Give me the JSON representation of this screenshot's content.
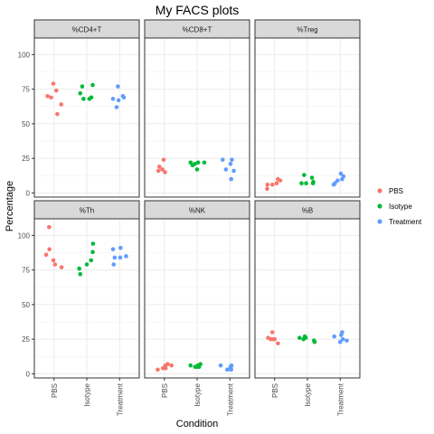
{
  "chart_data": {
    "type": "scatter",
    "title": "My FACS plots",
    "xlabel": "Condition",
    "ylabel": "Percentage",
    "categories": [
      "PBS",
      "Isotype",
      "Treatment"
    ],
    "y_ticks": [
      0,
      25,
      50,
      75,
      100
    ],
    "ylim": [
      -3,
      112
    ],
    "grid": true,
    "legend": {
      "position": "right",
      "entries": [
        {
          "name": "PBS",
          "color": "#F8766D"
        },
        {
          "name": "Isotype",
          "color": "#00BA38"
        },
        {
          "name": "Treatment",
          "color": "#619CFF"
        }
      ]
    },
    "panels": [
      {
        "title": "%CD4+T",
        "series": [
          {
            "name": "PBS",
            "points": [
              [
                0.8,
                70
              ],
              [
                0.91,
                69
              ],
              [
                0.98,
                79
              ],
              [
                1.07,
                74
              ],
              [
                1.1,
                57
              ],
              [
                1.22,
                64
              ]
            ]
          },
          {
            "name": "Isotype",
            "points": [
              [
                1.8,
                72
              ],
              [
                1.86,
                77
              ],
              [
                1.9,
                68
              ],
              [
                2.08,
                68
              ],
              [
                2.14,
                69
              ],
              [
                2.18,
                78
              ]
            ]
          },
          {
            "name": "Treatment",
            "points": [
              [
                2.8,
                68
              ],
              [
                2.91,
                62
              ],
              [
                2.95,
                77
              ],
              [
                2.97,
                67
              ],
              [
                3.1,
                70
              ],
              [
                3.13,
                69
              ]
            ]
          }
        ]
      },
      {
        "title": "%CD8+T",
        "series": [
          {
            "name": "PBS",
            "points": [
              [
                0.82,
                16
              ],
              [
                0.85,
                19
              ],
              [
                0.94,
                17
              ],
              [
                0.98,
                24
              ],
              [
                1.02,
                15
              ]
            ]
          },
          {
            "name": "Isotype",
            "points": [
              [
                1.8,
                22
              ],
              [
                1.86,
                20
              ],
              [
                1.93,
                21
              ],
              [
                2.0,
                17
              ],
              [
                2.03,
                22
              ],
              [
                2.22,
                22
              ]
            ]
          },
          {
            "name": "Treatment",
            "points": [
              [
                2.78,
                24
              ],
              [
                2.88,
                17
              ],
              [
                3.02,
                21
              ],
              [
                3.04,
                10
              ],
              [
                3.06,
                24
              ],
              [
                3.12,
                16
              ]
            ]
          }
        ]
      },
      {
        "title": "%Treg",
        "series": [
          {
            "name": "PBS",
            "points": [
              [
                0.77,
                3
              ],
              [
                0.78,
                6
              ],
              [
                0.93,
                6
              ],
              [
                1.06,
                7
              ],
              [
                1.1,
                10
              ],
              [
                1.17,
                9
              ]
            ]
          },
          {
            "name": "Isotype",
            "points": [
              [
                1.82,
                7
              ],
              [
                1.9,
                13
              ],
              [
                1.96,
                7
              ],
              [
                2.14,
                11
              ],
              [
                2.17,
                7
              ],
              [
                2.18,
                8
              ]
            ]
          },
          {
            "name": "Treatment",
            "points": [
              [
                2.8,
                6
              ],
              [
                2.84,
                7
              ],
              [
                2.92,
                9
              ],
              [
                3.02,
                14
              ],
              [
                3.06,
                10
              ],
              [
                3.1,
                12
              ]
            ]
          }
        ]
      },
      {
        "title": "%Th",
        "series": [
          {
            "name": "PBS",
            "points": [
              [
                0.76,
                86
              ],
              [
                0.85,
                106
              ],
              [
                0.86,
                90
              ],
              [
                0.98,
                82
              ],
              [
                1.03,
                79
              ],
              [
                1.23,
                77
              ]
            ]
          },
          {
            "name": "Isotype",
            "points": [
              [
                1.77,
                76
              ],
              [
                1.8,
                72
              ],
              [
                2.0,
                79
              ],
              [
                2.13,
                82
              ],
              [
                2.18,
                88
              ],
              [
                2.19,
                94
              ]
            ]
          },
          {
            "name": "Treatment",
            "points": [
              [
                2.8,
                90
              ],
              [
                2.82,
                79
              ],
              [
                2.85,
                84
              ],
              [
                3.02,
                84
              ],
              [
                3.03,
                91
              ],
              [
                3.2,
                85
              ]
            ]
          }
        ]
      },
      {
        "title": "%NK",
        "series": [
          {
            "name": "PBS",
            "points": [
              [
                0.8,
                3
              ],
              [
                0.96,
                4
              ],
              [
                1.03,
                6
              ],
              [
                1.04,
                4
              ],
              [
                1.1,
                7
              ],
              [
                1.22,
                6
              ]
            ]
          },
          {
            "name": "Isotype",
            "points": [
              [
                1.8,
                6
              ],
              [
                1.94,
                5
              ],
              [
                2.0,
                5
              ],
              [
                2.02,
                6
              ],
              [
                2.06,
                5
              ],
              [
                2.1,
                7
              ]
            ]
          },
          {
            "name": "Treatment",
            "points": [
              [
                2.72,
                6
              ],
              [
                2.92,
                3
              ],
              [
                3.02,
                5
              ],
              [
                3.03,
                4
              ],
              [
                3.04,
                3
              ],
              [
                3.05,
                6
              ]
            ]
          }
        ]
      },
      {
        "title": "%B",
        "series": [
          {
            "name": "PBS",
            "points": [
              [
                0.8,
                26
              ],
              [
                0.88,
                25
              ],
              [
                0.93,
                30
              ],
              [
                0.95,
                25
              ],
              [
                1.0,
                25
              ],
              [
                1.1,
                22
              ]
            ]
          },
          {
            "name": "Isotype",
            "points": [
              [
                1.76,
                26
              ],
              [
                1.88,
                25
              ],
              [
                1.92,
                27
              ],
              [
                1.95,
                26
              ],
              [
                2.2,
                24
              ],
              [
                2.22,
                23
              ]
            ]
          },
          {
            "name": "Treatment",
            "points": [
              [
                2.82,
                27
              ],
              [
                3.0,
                23
              ],
              [
                3.03,
                28
              ],
              [
                3.06,
                30
              ],
              [
                3.08,
                25
              ],
              [
                3.2,
                24
              ]
            ]
          }
        ]
      }
    ]
  }
}
